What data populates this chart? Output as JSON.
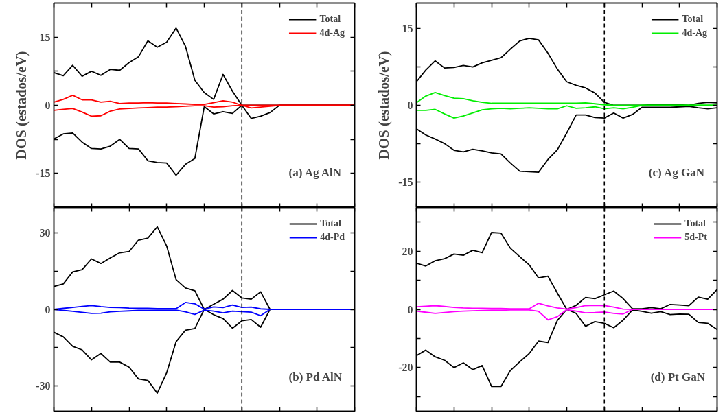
{
  "chart_data": [
    {
      "type": "line",
      "ylabel": "DOS (estados/eV)",
      "ylim": [
        -22.5,
        22.5
      ],
      "categories": [
        null,
        null,
        null,
        null,
        null,
        null,
        null,
        null,
        null,
        null,
        null,
        null,
        null,
        null,
        null,
        null,
        null,
        null,
        null,
        null,
        null,
        null,
        null,
        null,
        null,
        null,
        null,
        null,
        null,
        null,
        null,
        null,
        null
      ],
      "yticks": [
        -15,
        {
          "value": -7.5,
          "label": null
        },
        0,
        {
          "value": 7.5,
          "label": null
        },
        15
      ],
      "tick_labels": "y",
      "legend": "top right",
      "annotations": [
        "(a) Ag AlN"
      ],
      "series": [
        {
          "name": "Total",
          "color": "#000000",
          "values": [
            7.2,
            6.5,
            8.8,
            6.4,
            7.5,
            6.6,
            7.9,
            7.7,
            9.4,
            10.7,
            14.2,
            12.8,
            13.9,
            17,
            13,
            5.5,
            2.8,
            1.3,
            6.8,
            3.1,
            0,
            0,
            0,
            0,
            0,
            0,
            0,
            0,
            0,
            0,
            0,
            0,
            0
          ]
        },
        {
          "color": "#000000",
          "values": [
            -7.4,
            -6.3,
            -6.1,
            -8.1,
            -9.5,
            -9.6,
            -9.0,
            -7.5,
            -9.5,
            -9.6,
            -12.2,
            -12.6,
            -12.7,
            -15.4,
            -13,
            -11.7,
            -0.3,
            -1.9,
            -1.4,
            -1.8,
            0,
            -2.9,
            -2.4,
            -1.6,
            0,
            0,
            0,
            0,
            0,
            0,
            0,
            0,
            0
          ]
        },
        {
          "name": "4d-Ag",
          "color": "#ff0000",
          "values": [
            0.7,
            1.3,
            2.2,
            1.2,
            1.2,
            0.7,
            0.9,
            0.4,
            0.5,
            0.5,
            0.6,
            0.5,
            0.5,
            0.4,
            0.3,
            0.2,
            0.2,
            0.6,
            1.0,
            0.7,
            0,
            0,
            0,
            0,
            0,
            0,
            0,
            0,
            0,
            0,
            0,
            0,
            0
          ]
        },
        {
          "color": "#ff0000",
          "values": [
            -1.1,
            -0.9,
            -0.7,
            -1.5,
            -2.4,
            -2.3,
            -1.3,
            -0.8,
            -0.7,
            -0.6,
            -0.5,
            -0.4,
            -0.4,
            -0.3,
            -0.2,
            -0.1,
            -0.1,
            -0.4,
            -0.3,
            -0.1,
            0,
            -0.6,
            -0.4,
            -0.2,
            0,
            0,
            0,
            0,
            0,
            0,
            0,
            0,
            0
          ]
        }
      ]
    },
    {
      "type": "line",
      "ylabel": "DOS (estados/eV)",
      "ylim": [
        -20,
        20
      ],
      "categories": [
        null,
        null,
        null,
        null,
        null,
        null,
        null,
        null,
        null,
        null,
        null,
        null,
        null,
        null,
        null,
        null,
        null,
        null,
        null,
        null,
        null,
        null,
        null,
        null,
        null,
        null,
        null,
        null,
        null,
        null,
        null,
        null,
        null
      ],
      "yticks": [
        -15,
        {
          "value": -7.5,
          "label": null
        },
        0,
        {
          "value": 7.5,
          "label": null
        },
        15
      ],
      "tick_labels": "y",
      "legend": "top right",
      "annotations": [
        "(c) Ag GaN"
      ],
      "series": [
        {
          "name": "Total",
          "color": "#000000",
          "values": [
            4.6,
            6.9,
            8.7,
            7.3,
            7.4,
            7.8,
            7.5,
            8.3,
            8.8,
            9.3,
            11,
            12.6,
            13.1,
            12.8,
            10.2,
            7.1,
            4.6,
            3.9,
            3.4,
            2.4,
            0.6,
            0,
            0,
            0,
            0,
            0.1,
            0.2,
            0.2,
            0.1,
            0,
            0.4,
            0.6,
            0.5
          ]
        },
        {
          "color": "#000000",
          "values": [
            -4.6,
            -5.8,
            -6.6,
            -7.5,
            -8.8,
            -9.1,
            -8.6,
            -8.9,
            -9.3,
            -9.5,
            -11.3,
            -12.9,
            -13,
            -13.1,
            -10.6,
            -8.7,
            -5.4,
            -1.9,
            -1.9,
            -2.4,
            -2.5,
            -1.5,
            -2.5,
            -1.8,
            -0.4,
            -0.4,
            -0.4,
            -0.4,
            -0.3,
            -0.2,
            -0.5,
            -0.7,
            -0.5
          ]
        },
        {
          "name": "4d-Ag",
          "color": "#00ee00",
          "values": [
            0.5,
            1.8,
            2.5,
            1.9,
            1.4,
            1.3,
            0.9,
            0.6,
            0.4,
            0.4,
            0.4,
            0.4,
            0.4,
            0.4,
            0.4,
            0.4,
            0.4,
            0.4,
            0.5,
            0.3,
            0.1,
            0,
            0,
            0,
            0,
            0,
            0,
            0,
            0,
            0,
            0,
            0,
            0
          ]
        },
        {
          "color": "#00ee00",
          "values": [
            -1.0,
            -1.0,
            -0.8,
            -1.7,
            -2.5,
            -2.1,
            -1.5,
            -0.9,
            -0.7,
            -0.6,
            -0.7,
            -0.6,
            -0.5,
            -0.6,
            -0.7,
            -0.7,
            -0.1,
            -0.6,
            -0.5,
            -0.3,
            -0.7,
            -0.5,
            -0.7,
            -0.4,
            0,
            0,
            0,
            0,
            0,
            0,
            0,
            0,
            0
          ]
        }
      ]
    },
    {
      "type": "line",
      "ylim": [
        -40,
        40
      ],
      "categories": [
        null,
        null,
        null,
        null,
        null,
        null,
        null,
        null,
        null,
        null,
        null,
        null,
        null,
        null,
        null,
        null,
        null,
        null,
        null,
        null,
        null,
        null,
        null,
        null,
        null,
        null,
        null,
        null,
        null,
        null,
        null,
        null,
        null
      ],
      "yticks": [
        -30,
        {
          "value": -15,
          "label": null
        },
        0,
        {
          "value": 15,
          "label": null
        },
        30
      ],
      "tick_labels": "y",
      "legend": "top right",
      "annotations": [
        "(b) Pd AlN"
      ],
      "series": [
        {
          "name": "Total",
          "color": "#000000",
          "values": [
            9,
            10,
            14.7,
            15.6,
            19.8,
            18,
            20.2,
            22.2,
            22.7,
            27.2,
            28,
            32.4,
            24.9,
            11.7,
            8.4,
            7.3,
            0,
            2,
            4,
            7.4,
            4.5,
            4.0,
            6.9,
            0,
            0,
            0,
            0,
            0,
            0,
            0,
            0,
            0,
            0
          ]
        },
        {
          "color": "#000000",
          "values": [
            -9,
            -10.8,
            -14.5,
            -15.9,
            -19.8,
            -17.3,
            -20.7,
            -20.7,
            -22.7,
            -27.3,
            -27.9,
            -32.9,
            -24.9,
            -12.7,
            -8.2,
            -7.5,
            0,
            -2.1,
            -3.6,
            -7.4,
            -4.5,
            -4,
            -7,
            0,
            0,
            0,
            0,
            0,
            0,
            0,
            0,
            0,
            0
          ]
        },
        {
          "name": "4d-Pd",
          "color": "#0000ff",
          "values": [
            0,
            0.4,
            0.8,
            1.2,
            1.5,
            1.1,
            0.8,
            0.7,
            0.5,
            0.4,
            0.4,
            0.3,
            0.3,
            0.3,
            2.7,
            2.2,
            0.1,
            1.0,
            0.7,
            1.7,
            0.8,
            0.9,
            0.2,
            0,
            0,
            0,
            0,
            0,
            0,
            0,
            0,
            0,
            0
          ]
        },
        {
          "color": "#0000ff",
          "values": [
            0,
            -0.4,
            -0.8,
            -1.2,
            -1.6,
            -1.5,
            -1.0,
            -0.8,
            -0.6,
            -0.4,
            -0.4,
            -0.3,
            -0.3,
            -0.3,
            -1.0,
            -2.0,
            -0.3,
            -0.7,
            -1.4,
            -0.7,
            -0.9,
            -1.1,
            -2.5,
            0,
            0,
            0,
            0,
            0,
            0,
            0,
            0,
            0,
            0
          ]
        }
      ]
    },
    {
      "type": "line",
      "ylim": [
        -35,
        35
      ],
      "categories": [
        null,
        null,
        null,
        null,
        null,
        null,
        null,
        null,
        null,
        null,
        null,
        null,
        null,
        null,
        null,
        null,
        null,
        null,
        null,
        null,
        null,
        null,
        null,
        null,
        null,
        null,
        null,
        null,
        null,
        null,
        null,
        null,
        null
      ],
      "yticks": [
        {
          "value": -30,
          "label": null
        },
        -20,
        {
          "value": -10,
          "label": null
        },
        0,
        {
          "value": 10,
          "label": null
        },
        20,
        {
          "value": 30,
          "label": null
        }
      ],
      "tick_labels": "y",
      "legend": "top right",
      "annotations": [
        "(d) Pt GaN"
      ],
      "series": [
        {
          "name": "Total",
          "color": "#000000",
          "values": [
            15.9,
            14.9,
            16.7,
            17.4,
            19,
            18.6,
            20.3,
            19.5,
            26.4,
            26.2,
            21,
            18.1,
            15.3,
            10.8,
            11.4,
            5.6,
            0,
            1.4,
            4.1,
            3.7,
            5,
            6.3,
            3.7,
            0.2,
            0.2,
            0.6,
            0.2,
            1.7,
            1.5,
            1.3,
            4.2,
            3.5,
            6.8
          ]
        },
        {
          "color": "#000000",
          "values": [
            -15.9,
            -14,
            -16.3,
            -17.5,
            -20,
            -18.4,
            -20.7,
            -19.3,
            -26.5,
            -26.5,
            -21,
            -18,
            -15.2,
            -10.9,
            -11.4,
            -3.8,
            0,
            -1.4,
            -5.8,
            -4.2,
            -4.8,
            -6.3,
            -3.7,
            -0.2,
            -0.7,
            -1.3,
            -0.8,
            -1.8,
            -1.6,
            -1.7,
            -4.5,
            -4.8,
            -6.9
          ]
        },
        {
          "name": "5d-Pt",
          "color": "#ff00ff",
          "values": [
            0.9,
            1.1,
            1.3,
            1.0,
            0.7,
            0.5,
            0.4,
            0.4,
            0.3,
            0.3,
            0.2,
            0.2,
            0.2,
            2.1,
            1.2,
            0.5,
            0.1,
            0.6,
            1.3,
            1.4,
            1.3,
            0.8,
            0.1,
            0,
            0,
            0,
            0,
            0,
            0,
            0,
            0,
            0,
            0
          ]
        },
        {
          "color": "#ff00ff",
          "values": [
            -0.6,
            -1.0,
            -1.4,
            -1.1,
            -0.8,
            -0.6,
            -0.5,
            -0.4,
            -0.3,
            -0.3,
            -0.2,
            -0.2,
            -0.2,
            -0.7,
            -3.6,
            -2.5,
            -0.1,
            -0.6,
            -1.2,
            -1.1,
            -0.9,
            -1.4,
            -1.6,
            0,
            0,
            0,
            0,
            0,
            0,
            0,
            0,
            0,
            0
          ]
        }
      ]
    }
  ]
}
